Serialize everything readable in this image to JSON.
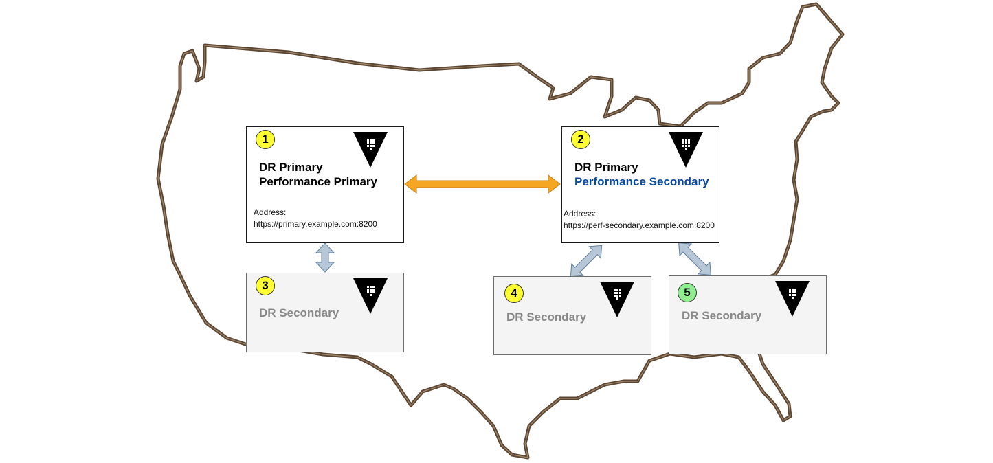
{
  "nodes": {
    "n1": {
      "badge": "1",
      "badge_color": "#ffff33",
      "line1": "DR Primary",
      "line2": "Performance Primary",
      "line2_color": "#000000",
      "address_label": "Address:",
      "address": "https://primary.example.com:8200"
    },
    "n2": {
      "badge": "2",
      "badge_color": "#ffff33",
      "line1": "DR Primary",
      "line2": "Performance Secondary",
      "line2_color": "#0a4a9e",
      "address_label": "Address:",
      "address": "https://perf-secondary.example.com:8200"
    },
    "n3": {
      "badge": "3",
      "badge_color": "#ffff33",
      "title": "DR Secondary"
    },
    "n4": {
      "badge": "4",
      "badge_color": "#ffff33",
      "title": "DR Secondary"
    },
    "n5": {
      "badge": "5",
      "badge_color": "#90ee90",
      "title": "DR Secondary"
    }
  },
  "colors": {
    "map_outline": "#5c4631",
    "performance_replication_arrow": "#f5a623",
    "dr_replication_arrow": "#b7c7d8",
    "logo": "#000000"
  },
  "icons": {
    "logo": "vault-triangle-logo-icon",
    "map": "usa-map-outline"
  }
}
